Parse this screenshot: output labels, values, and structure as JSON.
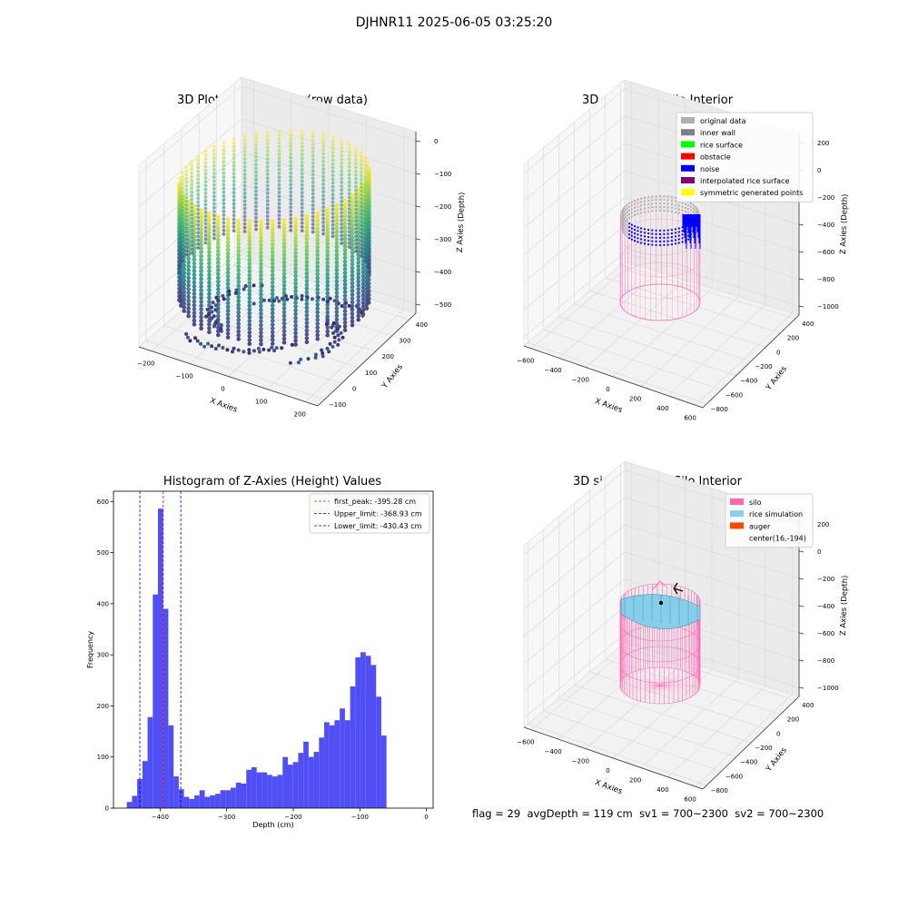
{
  "suptitle": "DJHNR11 2025-06-05 03:25:20",
  "footer": {
    "flag": "flag = 29",
    "avg_depth": "avgDepth = 119 cm",
    "sv1": "sv1 = 700~2300",
    "sv2": "sv2 = 700~2300"
  },
  "colors": {
    "histogram_bar": "#4b4bf5",
    "first_peak_line": "#ff0000",
    "limit_lines": "#0000cc",
    "silo": "#ff69b4",
    "rice_simulation": "#87ceeb",
    "auger": "#ff4500",
    "original_data": "#b0b0b0",
    "inner_wall": "#808080",
    "rice_surface": "#00ff00",
    "obstacle": "#ff0000",
    "noise": "#0000ff",
    "interpolated_rice_surface": "#800080",
    "symmetric_generated_points": "#ffff00"
  },
  "chart_data": [
    {
      "type": "scatter",
      "title": "3D Plot of Silo Interior(row data)",
      "xlabel": "X Axies",
      "ylabel": "Y Axies",
      "zlabel": "Z Axies (Depth)",
      "x_ticks": [
        "−200",
        "−100",
        "0",
        "100",
        "200"
      ],
      "y_ticks": [
        "−100",
        "0",
        "100",
        "200",
        "300",
        "400"
      ],
      "z_ticks": [
        "0",
        "−100",
        "−200",
        "−300",
        "−400",
        "−500"
      ],
      "xlim": [
        -230,
        230
      ],
      "ylim": [
        -100,
        450
      ],
      "zlim": [
        -560,
        0
      ],
      "colormap": "viridis"
    },
    {
      "type": "scatter",
      "title": "3D classify of Silo Interior",
      "xlabel": "X Axies",
      "ylabel": "Y Axies",
      "zlabel": "Z Axies (Depth)",
      "x_ticks": [
        "−600",
        "−400",
        "−200",
        "0",
        "200",
        "400",
        "600"
      ],
      "y_ticks": [
        "−800",
        "−600",
        "−400",
        "−200",
        "0",
        "200",
        "400"
      ],
      "z_ticks": [
        "200",
        "0",
        "−200",
        "−400",
        "−600",
        "−800",
        "−1000"
      ],
      "xlim": [
        -600,
        600
      ],
      "ylim": [
        -800,
        400
      ],
      "zlim": [
        -1000,
        200
      ],
      "legend": [
        {
          "label": "original data",
          "color": "#b0b0b0"
        },
        {
          "label": "inner wall",
          "color": "#808080"
        },
        {
          "label": "rice surface",
          "color": "#00ff00"
        },
        {
          "label": "obstacle",
          "color": "#ff0000"
        },
        {
          "label": "noise",
          "color": "#0000ff"
        },
        {
          "label": "interpolated rice surface",
          "color": "#800080"
        },
        {
          "label": "symmetric generated points",
          "color": "#ffff00"
        }
      ],
      "legend_position": "top-right"
    },
    {
      "type": "bar",
      "title": "Histogram of Z-Axies (Height) Values",
      "xlabel": "Depth (cm)",
      "ylabel": "Frequency",
      "xlim": [
        -470,
        10
      ],
      "ylim": [
        0,
        620
      ],
      "x_ticks": [
        -400,
        -300,
        -200,
        -100,
        0
      ],
      "y_ticks": [
        0,
        100,
        200,
        300,
        400,
        500,
        600
      ],
      "bin_start": -450,
      "bin_width": 7.8,
      "values": [
        12,
        24,
        57,
        92,
        178,
        418,
        586,
        390,
        162,
        62,
        37,
        22,
        18,
        25,
        35,
        22,
        25,
        28,
        35,
        35,
        40,
        50,
        48,
        75,
        80,
        70,
        70,
        65,
        62,
        65,
        100,
        85,
        90,
        108,
        130,
        100,
        110,
        138,
        168,
        162,
        172,
        195,
        172,
        238,
        295,
        305,
        298,
        280,
        218,
        142
      ],
      "lines": [
        {
          "label": "first_peak: -395.28 cm",
          "x": -395.28,
          "color": "#ff0000"
        },
        {
          "label": "Upper_limit: -368.93 cm",
          "x": -368.93,
          "color": "#0000cc"
        },
        {
          "label": "Lower_limit: -430.43 cm",
          "x": -430.43,
          "color": "#0000cc"
        }
      ],
      "legend_position": "top-right"
    },
    {
      "type": "scatter",
      "title": "3D simulation of Silo Interior",
      "xlabel": "X Axies",
      "ylabel": "Y Axies",
      "zlabel": "Z Axies (Depth)",
      "x_ticks": [
        "−600",
        "−400",
        "−200",
        "0",
        "200",
        "400",
        "600"
      ],
      "y_ticks": [
        "−800",
        "−600",
        "−400",
        "−200",
        "0",
        "200",
        "400"
      ],
      "z_ticks": [
        "200",
        "0",
        "−200",
        "−400",
        "−600",
        "−800",
        "−1000"
      ],
      "xlim": [
        -600,
        600
      ],
      "ylim": [
        -800,
        400
      ],
      "zlim": [
        -1000,
        200
      ],
      "legend": [
        {
          "label": "silo",
          "color": "#ff69b4"
        },
        {
          "label": "rice simulation",
          "color": "#87ceeb"
        },
        {
          "label": "auger",
          "color": "#ff4500"
        },
        {
          "label": "center(16,-194)",
          "color": ""
        }
      ],
      "legend_position": "top-right"
    }
  ]
}
